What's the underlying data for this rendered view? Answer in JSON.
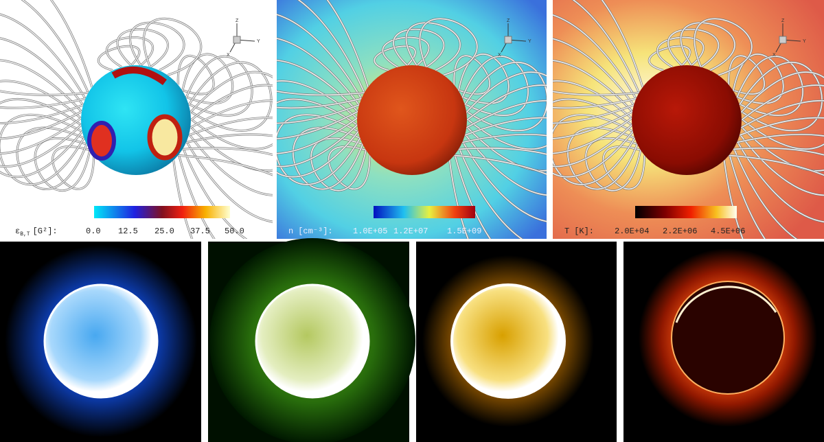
{
  "panels_top": [
    {
      "label": {
        "symbol": "ε",
        "subscript": "B,T",
        "unit": "[G²]:"
      },
      "ticks": [
        "0.0",
        "12.5",
        "25.0",
        "37.5",
        "50.0"
      ]
    },
    {
      "label": {
        "symbol": "n",
        "unit": "[cm⁻³]:"
      },
      "ticks": [
        "1.0E+05",
        "1.2E+07",
        "1.5E+09"
      ]
    },
    {
      "label": {
        "symbol": "T",
        "unit": "[K]:"
      },
      "ticks": [
        "2.0E+04",
        "2.2E+06",
        "4.5E+06"
      ]
    }
  ],
  "axes_triad": [
    "Z",
    "Y",
    "X"
  ]
}
